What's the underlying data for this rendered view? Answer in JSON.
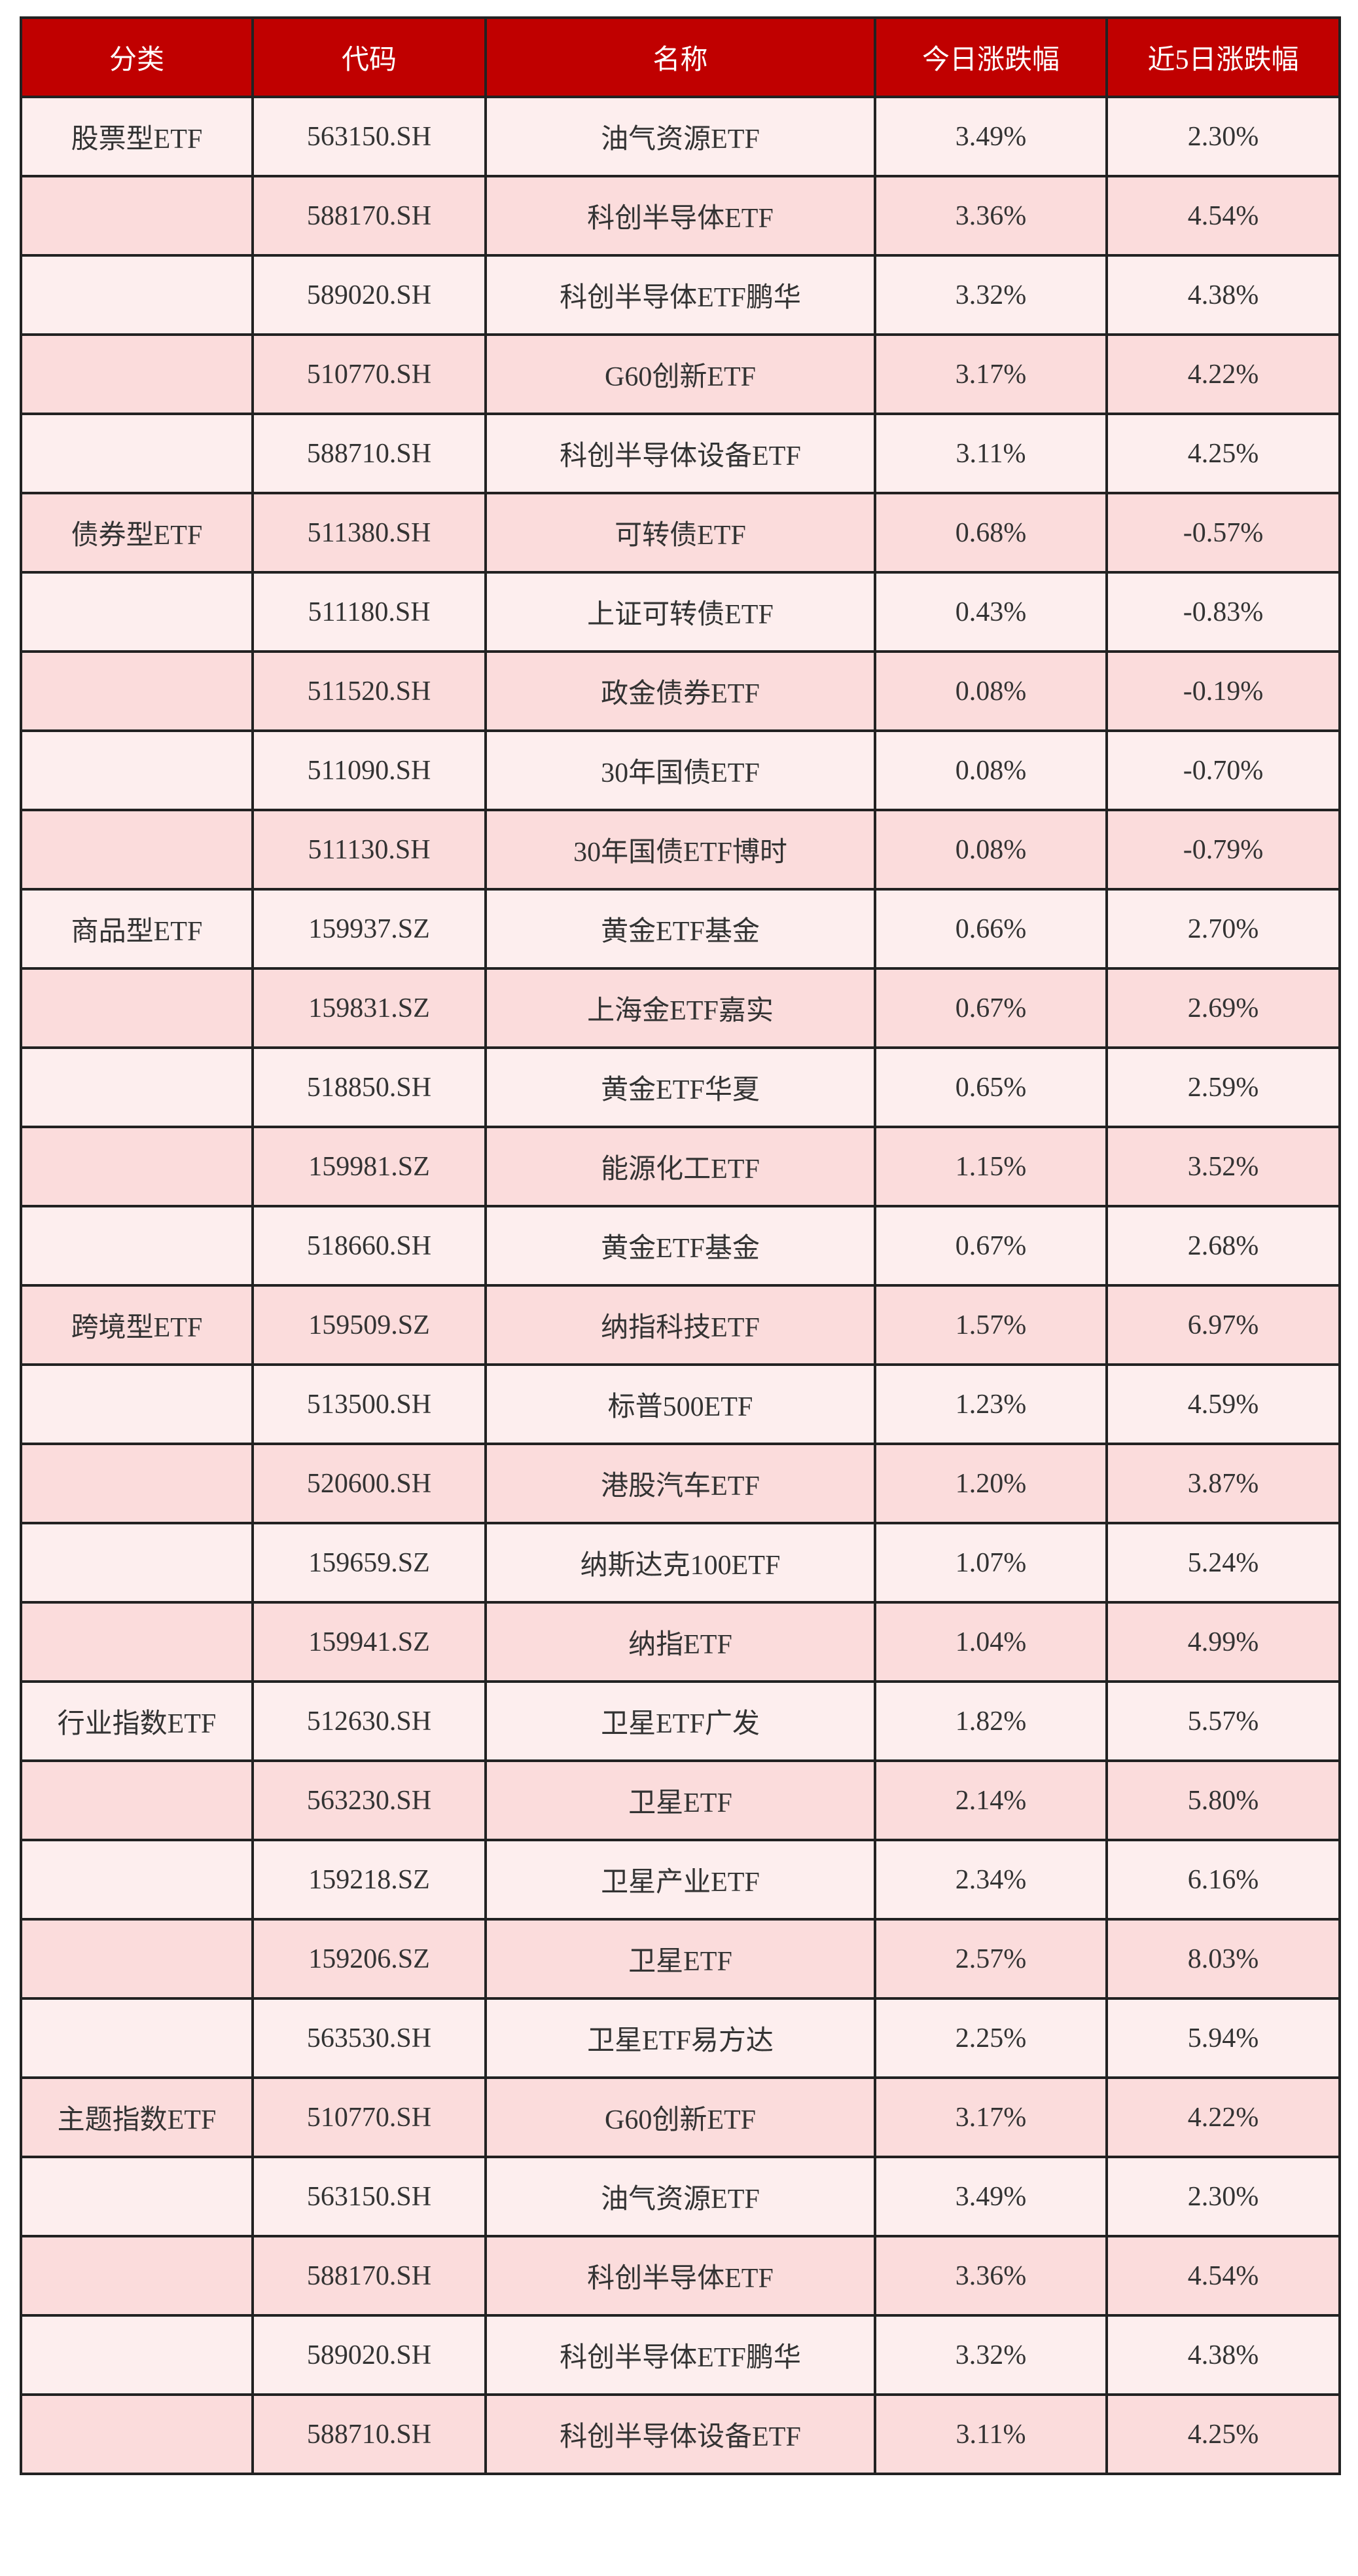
{
  "table": {
    "header": [
      "分类",
      "代码",
      "名称",
      "今日涨跌幅",
      "近5日涨跌幅"
    ],
    "rows": [
      [
        "股票型ETF",
        "563150.SH",
        "油气资源ETF",
        "3.49%",
        "2.30%"
      ],
      [
        null,
        "588170.SH",
        "科创半导体ETF",
        "3.36%",
        "4.54%"
      ],
      [
        null,
        "589020.SH",
        "科创半导体ETF鹏华",
        "3.32%",
        "4.38%"
      ],
      [
        null,
        "510770.SH",
        "G60创新ETF",
        "3.17%",
        "4.22%"
      ],
      [
        null,
        "588710.SH",
        "科创半导体设备ETF",
        "3.11%",
        "4.25%"
      ],
      [
        "债券型ETF",
        "511380.SH",
        "可转债ETF",
        "0.68%",
        "-0.57%"
      ],
      [
        null,
        "511180.SH",
        "上证可转债ETF",
        "0.43%",
        "-0.83%"
      ],
      [
        null,
        "511520.SH",
        "政金债券ETF",
        "0.08%",
        "-0.19%"
      ],
      [
        null,
        "511090.SH",
        "30年国债ETF",
        "0.08%",
        "-0.70%"
      ],
      [
        null,
        "511130.SH",
        "30年国债ETF博时",
        "0.08%",
        "-0.79%"
      ],
      [
        "商品型ETF",
        "159937.SZ",
        "黄金ETF基金",
        "0.66%",
        "2.70%"
      ],
      [
        null,
        "159831.SZ",
        "上海金ETF嘉实",
        "0.67%",
        "2.69%"
      ],
      [
        null,
        "518850.SH",
        "黄金ETF华夏",
        "0.65%",
        "2.59%"
      ],
      [
        null,
        "159981.SZ",
        "能源化工ETF",
        "1.15%",
        "3.52%"
      ],
      [
        null,
        "518660.SH",
        "黄金ETF基金",
        "0.67%",
        "2.68%"
      ],
      [
        "跨境型ETF",
        "159509.SZ",
        "纳指科技ETF",
        "1.57%",
        "6.97%"
      ],
      [
        null,
        "513500.SH",
        "标普500ETF",
        "1.23%",
        "4.59%"
      ],
      [
        null,
        "520600.SH",
        "港股汽车ETF",
        "1.20%",
        "3.87%"
      ],
      [
        null,
        "159659.SZ",
        "纳斯达克100ETF",
        "1.07%",
        "5.24%"
      ],
      [
        null,
        "159941.SZ",
        "纳指ETF",
        "1.04%",
        "4.99%"
      ],
      [
        "行业指数ETF",
        "512630.SH",
        "卫星ETF广发",
        "1.82%",
        "5.57%"
      ],
      [
        null,
        "563230.SH",
        "卫星ETF",
        "2.14%",
        "5.80%"
      ],
      [
        null,
        "159218.SZ",
        "卫星产业ETF",
        "2.34%",
        "6.16%"
      ],
      [
        null,
        "159206.SZ",
        "卫星ETF",
        "2.57%",
        "8.03%"
      ],
      [
        null,
        "563530.SH",
        "卫星ETF易方达",
        "2.25%",
        "5.94%"
      ],
      [
        "主题指数ETF",
        "510770.SH",
        "G60创新ETF",
        "3.17%",
        "4.22%"
      ],
      [
        null,
        "563150.SH",
        "油气资源ETF",
        "3.49%",
        "2.30%"
      ],
      [
        null,
        "588170.SH",
        "科创半导体ETF",
        "3.36%",
        "4.54%"
      ],
      [
        null,
        "589020.SH",
        "科创半导体ETF鹏华",
        "3.32%",
        "4.38%"
      ],
      [
        null,
        "588710.SH",
        "科创半导体设备ETF",
        "3.11%",
        "4.25%"
      ]
    ]
  }
}
